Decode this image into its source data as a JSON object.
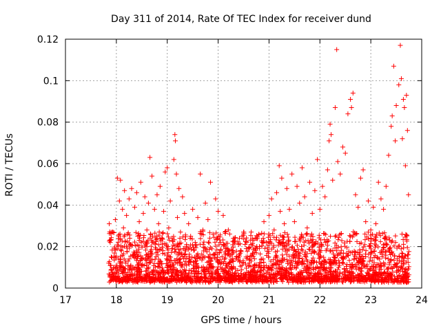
{
  "chart_data": {
    "type": "scatter",
    "title": "Day 311 of 2014, Rate Of TEC Index for receiver dund",
    "xlabel": "GPS time / hours",
    "ylabel": "ROTI / TECUs",
    "xlim": [
      17,
      24
    ],
    "ylim": [
      0,
      0.12
    ],
    "xticks": [
      "17",
      "18",
      "19",
      "20",
      "21",
      "22",
      "23",
      "24"
    ],
    "yticks": [
      "0",
      "0.02",
      "0.04",
      "0.06",
      "0.08",
      "0.1",
      "0.12"
    ],
    "grid": true,
    "marker": "+",
    "color": "#ff0000",
    "series": [
      {
        "name": "ROTI",
        "points": [
          [
            17.85,
            0.012
          ],
          [
            17.86,
            0.031
          ],
          [
            17.88,
            0.022
          ],
          [
            17.9,
            0.009
          ],
          [
            17.92,
            0.027
          ],
          [
            17.95,
            0.015
          ],
          [
            17.98,
            0.033
          ],
          [
            18.0,
            0.011
          ],
          [
            18.02,
            0.053
          ],
          [
            18.04,
            0.024
          ],
          [
            18.06,
            0.042
          ],
          [
            18.08,
            0.052
          ],
          [
            18.1,
            0.018
          ],
          [
            18.12,
            0.038
          ],
          [
            18.14,
            0.029
          ],
          [
            18.16,
            0.047
          ],
          [
            18.18,
            0.013
          ],
          [
            18.2,
            0.035
          ],
          [
            18.22,
            0.026
          ],
          [
            18.25,
            0.043
          ],
          [
            18.28,
            0.021
          ],
          [
            18.3,
            0.048
          ],
          [
            18.33,
            0.016
          ],
          [
            18.36,
            0.039
          ],
          [
            18.4,
            0.046
          ],
          [
            18.42,
            0.025
          ],
          [
            18.45,
            0.032
          ],
          [
            18.48,
            0.051
          ],
          [
            18.5,
            0.014
          ],
          [
            18.53,
            0.036
          ],
          [
            18.56,
            0.044
          ],
          [
            18.6,
            0.028
          ],
          [
            18.63,
            0.041
          ],
          [
            18.66,
            0.063
          ],
          [
            18.7,
            0.054
          ],
          [
            18.72,
            0.022
          ],
          [
            18.75,
            0.038
          ],
          [
            18.78,
            0.017
          ],
          [
            18.8,
            0.045
          ],
          [
            18.83,
            0.031
          ],
          [
            18.86,
            0.049
          ],
          [
            18.9,
            0.024
          ],
          [
            18.93,
            0.037
          ],
          [
            18.96,
            0.056
          ],
          [
            19.0,
            0.058
          ],
          [
            19.03,
            0.029
          ],
          [
            19.06,
            0.042
          ],
          [
            19.1,
            0.019
          ],
          [
            19.13,
            0.062
          ],
          [
            19.15,
            0.074
          ],
          [
            19.16,
            0.071
          ],
          [
            19.18,
            0.055
          ],
          [
            19.2,
            0.034
          ],
          [
            19.23,
            0.048
          ],
          [
            19.26,
            0.027
          ],
          [
            19.3,
            0.044
          ],
          [
            19.34,
            0.036
          ],
          [
            19.38,
            0.021
          ],
          [
            19.42,
            0.031
          ],
          [
            19.46,
            0.025
          ],
          [
            19.5,
            0.038
          ],
          [
            19.55,
            0.022
          ],
          [
            19.6,
            0.034
          ],
          [
            19.65,
            0.055
          ],
          [
            19.7,
            0.028
          ],
          [
            19.75,
            0.041
          ],
          [
            19.8,
            0.033
          ],
          [
            19.85,
            0.051
          ],
          [
            19.9,
            0.026
          ],
          [
            19.95,
            0.043
          ],
          [
            20.0,
            0.037
          ],
          [
            20.05,
            0.022
          ],
          [
            20.1,
            0.035
          ],
          [
            20.15,
            0.019
          ],
          [
            20.2,
            0.028
          ],
          [
            20.25,
            0.016
          ],
          [
            20.3,
            0.024
          ],
          [
            20.35,
            0.014
          ],
          [
            20.4,
            0.021
          ],
          [
            20.45,
            0.018
          ],
          [
            20.5,
            0.027
          ],
          [
            20.55,
            0.015
          ],
          [
            20.6,
            0.019
          ],
          [
            20.65,
            0.013
          ],
          [
            20.7,
            0.023
          ],
          [
            20.75,
            0.017
          ],
          [
            20.8,
            0.026
          ],
          [
            20.85,
            0.014
          ],
          [
            20.9,
            0.032
          ],
          [
            20.95,
            0.022
          ],
          [
            21.0,
            0.035
          ],
          [
            21.05,
            0.043
          ],
          [
            21.1,
            0.028
          ],
          [
            21.15,
            0.046
          ],
          [
            21.2,
            0.059
          ],
          [
            21.22,
            0.037
          ],
          [
            21.25,
            0.053
          ],
          [
            21.3,
            0.031
          ],
          [
            21.35,
            0.048
          ],
          [
            21.4,
            0.038
          ],
          [
            21.45,
            0.055
          ],
          [
            21.5,
            0.032
          ],
          [
            21.55,
            0.049
          ],
          [
            21.6,
            0.041
          ],
          [
            21.65,
            0.058
          ],
          [
            21.7,
            0.044
          ],
          [
            21.75,
            0.029
          ],
          [
            21.8,
            0.051
          ],
          [
            21.85,
            0.036
          ],
          [
            21.9,
            0.047
          ],
          [
            21.95,
            0.062
          ],
          [
            22.0,
            0.038
          ],
          [
            22.05,
            0.049
          ],
          [
            22.1,
            0.044
          ],
          [
            22.15,
            0.057
          ],
          [
            22.18,
            0.071
          ],
          [
            22.2,
            0.079
          ],
          [
            22.22,
            0.074
          ],
          [
            22.25,
            0.052
          ],
          [
            22.3,
            0.087
          ],
          [
            22.33,
            0.115
          ],
          [
            22.35,
            0.061
          ],
          [
            22.4,
            0.055
          ],
          [
            22.45,
            0.068
          ],
          [
            22.5,
            0.065
          ],
          [
            22.55,
            0.084
          ],
          [
            22.6,
            0.091
          ],
          [
            22.62,
            0.087
          ],
          [
            22.65,
            0.094
          ],
          [
            22.7,
            0.045
          ],
          [
            22.75,
            0.039
          ],
          [
            22.8,
            0.053
          ],
          [
            22.85,
            0.057
          ],
          [
            22.9,
            0.032
          ],
          [
            22.95,
            0.042
          ],
          [
            23.0,
            0.028
          ],
          [
            23.05,
            0.039
          ],
          [
            23.1,
            0.031
          ],
          [
            23.15,
            0.051
          ],
          [
            23.2,
            0.043
          ],
          [
            23.25,
            0.038
          ],
          [
            23.3,
            0.049
          ],
          [
            23.35,
            0.064
          ],
          [
            23.4,
            0.078
          ],
          [
            23.42,
            0.083
          ],
          [
            23.45,
            0.107
          ],
          [
            23.48,
            0.071
          ],
          [
            23.5,
            0.088
          ],
          [
            23.55,
            0.098
          ],
          [
            23.58,
            0.117
          ],
          [
            23.6,
            0.101
          ],
          [
            23.62,
            0.072
          ],
          [
            23.64,
            0.091
          ],
          [
            23.66,
            0.087
          ],
          [
            23.68,
            0.059
          ],
          [
            23.7,
            0.093
          ],
          [
            23.72,
            0.076
          ],
          [
            23.74,
            0.045
          ]
        ]
      }
    ]
  }
}
